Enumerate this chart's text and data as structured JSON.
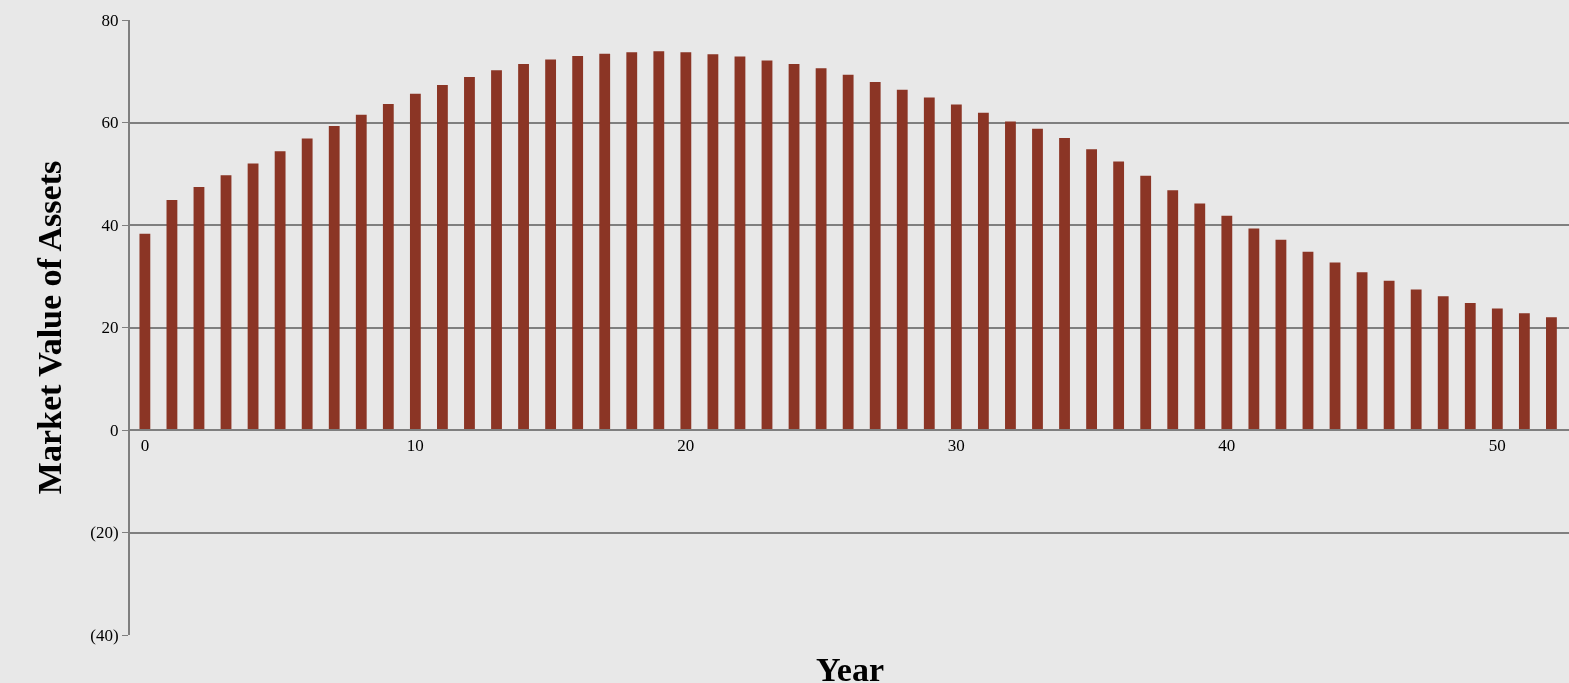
{
  "chart_data": {
    "type": "bar",
    "xlabel": "Year",
    "ylabel": "Market Value of Assets",
    "x": [
      0,
      1,
      2,
      3,
      4,
      5,
      6,
      7,
      8,
      9,
      10,
      11,
      12,
      13,
      14,
      15,
      16,
      17,
      18,
      19,
      20,
      21,
      22,
      23,
      24,
      25,
      26,
      27,
      28,
      29,
      30,
      31,
      32,
      33,
      34,
      35,
      36,
      37,
      38,
      39,
      40,
      41,
      42,
      43,
      44,
      45,
      46,
      47,
      48,
      49,
      50,
      51,
      52
    ],
    "values": [
      38.3,
      44.9,
      47.4,
      49.7,
      52.0,
      54.4,
      56.9,
      59.3,
      61.5,
      63.6,
      65.6,
      67.3,
      68.9,
      70.2,
      71.4,
      72.3,
      73.0,
      73.4,
      73.7,
      73.9,
      73.7,
      73.3,
      72.9,
      72.1,
      71.4,
      70.6,
      69.3,
      67.9,
      66.4,
      64.9,
      63.5,
      61.9,
      60.2,
      58.8,
      57.0,
      54.8,
      52.4,
      49.6,
      46.8,
      44.2,
      41.8,
      39.3,
      37.1,
      34.8,
      32.7,
      30.8,
      29.1,
      27.4,
      26.1,
      24.8,
      23.7,
      22.8,
      22.0
    ],
    "color": "#8b3525",
    "xlim": [
      -0.55,
      52.65
    ],
    "xticks": [
      0,
      10,
      20,
      30,
      40,
      50
    ],
    "ylim": [
      -40,
      80
    ],
    "yticks": [
      {
        "value": -40,
        "label": "(40)"
      },
      {
        "value": -20,
        "label": "(20)"
      },
      0,
      20,
      40,
      60,
      80
    ],
    "grid": "y"
  }
}
